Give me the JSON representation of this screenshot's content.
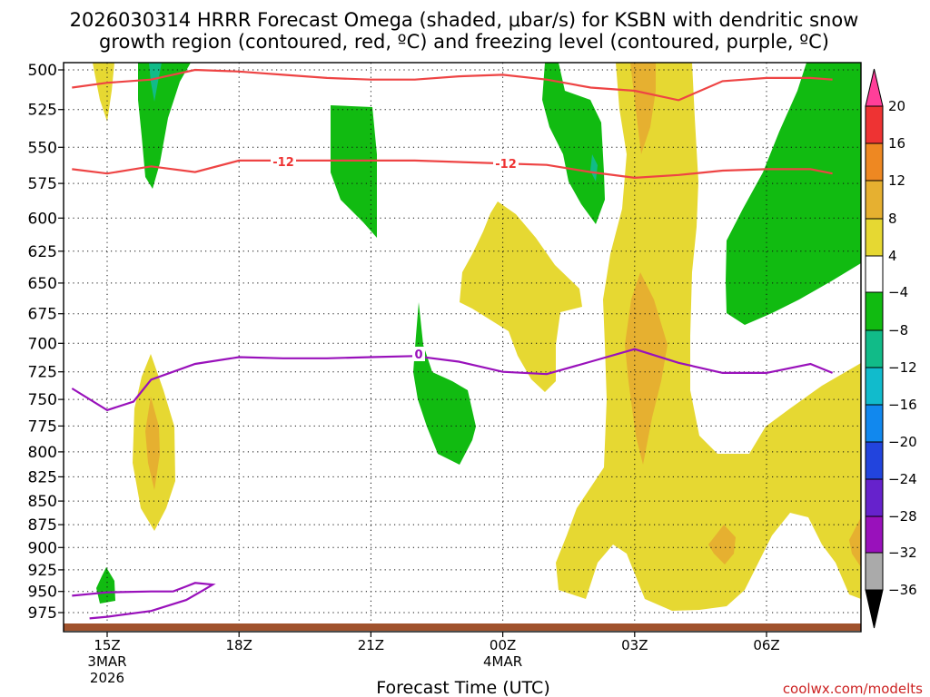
{
  "chart_data": {
    "type": "heatmap",
    "title_line1": "2026030314 HRRR Forecast Omega (shaded, μbar/s) for KSBN with dendritic snow",
    "title_line2": "growth region (contoured, red, ºC) and freezing level (contoured, purple, ºC)",
    "xlabel": "Forecast Time (UTC)",
    "ylabel": "",
    "credit": "coolwx.com/modelts",
    "x_hours_from_15z": [
      0,
      3,
      6,
      9,
      12,
      15
    ],
    "x_ticks": [
      {
        "label": "15Z",
        "sub1": "3MAR",
        "sub2": "2026"
      },
      {
        "label": "18Z",
        "sub1": "",
        "sub2": ""
      },
      {
        "label": "21Z",
        "sub1": "",
        "sub2": ""
      },
      {
        "label": "00Z",
        "sub1": "4MAR",
        "sub2": ""
      },
      {
        "label": "03Z",
        "sub1": "",
        "sub2": ""
      },
      {
        "label": "06Z",
        "sub1": "",
        "sub2": ""
      }
    ],
    "pressure_levels": [
      500,
      525,
      550,
      575,
      600,
      625,
      650,
      675,
      700,
      725,
      750,
      775,
      800,
      825,
      850,
      875,
      900,
      925,
      950,
      975
    ],
    "pressure_labels": [
      "500",
      "525",
      "550",
      "575",
      "600",
      "625",
      "650",
      "675",
      "700",
      "725",
      "750",
      "775",
      "800",
      "825",
      "850",
      "875",
      "900",
      "925",
      "950",
      "975"
    ],
    "colorbar": {
      "labels": [
        "20",
        "16",
        "12",
        "8",
        "4",
        "−4",
        "−8",
        "−12",
        "−16",
        "−20",
        "−24",
        "−28",
        "−32",
        "−36"
      ],
      "colors": [
        "#ff3f99",
        "#ee3333",
        "#ee8822",
        "#e6b030",
        "#e6d832",
        "#ffffff",
        "#11bb11",
        "#11bb88",
        "#11bbcc",
        "#1188ee",
        "#2244dd",
        "#6622cc",
        "#9911bb",
        "#aaaaaa",
        "#000000"
      ]
    },
    "contour_labels": {
      "dgz_upper": "-12",
      "dgz_lower": "-12",
      "freezing": "0"
    },
    "dgz_upper_hpa": [
      [
        -0.8,
        511
      ],
      [
        0,
        508
      ],
      [
        1,
        506
      ],
      [
        2,
        500
      ],
      [
        3,
        501
      ],
      [
        4,
        503
      ],
      [
        5,
        505
      ],
      [
        6,
        506
      ],
      [
        7,
        506
      ],
      [
        8,
        504
      ],
      [
        9,
        503
      ],
      [
        10,
        506
      ],
      [
        11,
        511
      ],
      [
        12,
        513
      ],
      [
        13,
        519
      ],
      [
        14,
        507
      ],
      [
        15,
        505
      ],
      [
        16,
        505
      ],
      [
        16.5,
        506
      ]
    ],
    "dgz_lower_hpa": [
      [
        -0.8,
        565
      ],
      [
        0,
        568
      ],
      [
        1,
        563
      ],
      [
        2,
        567
      ],
      [
        3,
        559
      ],
      [
        4,
        559
      ],
      [
        5,
        559
      ],
      [
        6,
        559
      ],
      [
        7,
        559
      ],
      [
        8,
        560
      ],
      [
        9,
        561
      ],
      [
        10,
        562
      ],
      [
        11,
        567
      ],
      [
        12,
        571
      ],
      [
        13,
        569
      ],
      [
        14,
        566
      ],
      [
        15,
        565
      ],
      [
        16,
        565
      ],
      [
        16.5,
        568
      ]
    ],
    "freezing_level_hpa": [
      [
        -0.8,
        740
      ],
      [
        0,
        760
      ],
      [
        0.6,
        752
      ],
      [
        1,
        732
      ],
      [
        2,
        718
      ],
      [
        3,
        712
      ],
      [
        4,
        713
      ],
      [
        5,
        713
      ],
      [
        6,
        712
      ],
      [
        7,
        711
      ],
      [
        8,
        716
      ],
      [
        9,
        725
      ],
      [
        10,
        727
      ],
      [
        11,
        716
      ],
      [
        12,
        705
      ],
      [
        13,
        717
      ],
      [
        14,
        726
      ],
      [
        15,
        726
      ],
      [
        16,
        718
      ],
      [
        16.5,
        726
      ]
    ],
    "freezing_level_low_hpa": [
      [
        -0.8,
        955
      ],
      [
        0,
        951
      ],
      [
        1,
        950
      ],
      [
        1.5,
        950
      ],
      [
        1.8,
        944
      ],
      [
        2,
        940
      ],
      [
        2.4,
        942
      ],
      [
        2.2,
        948
      ],
      [
        1.8,
        960
      ],
      [
        1,
        973
      ],
      [
        0,
        980
      ],
      [
        -0.4,
        982
      ]
    ],
    "surface_pressure_hpa": 985
  }
}
